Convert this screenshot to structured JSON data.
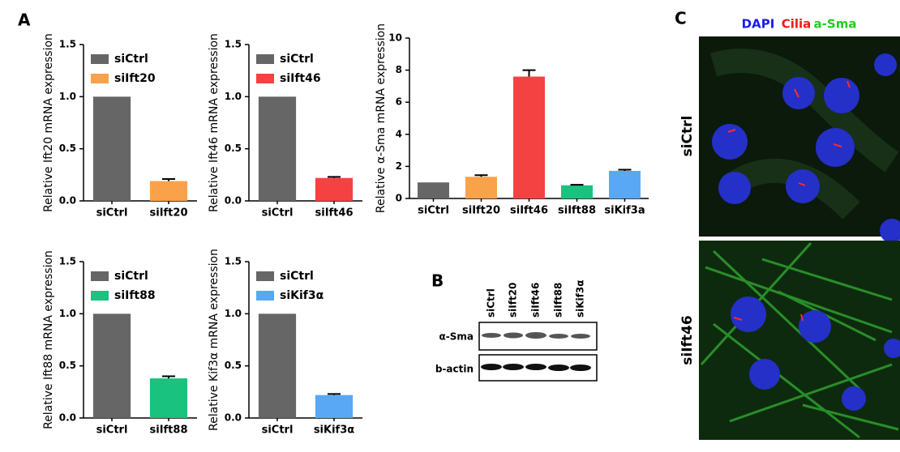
{
  "chart_data": [
    {
      "type": "bar",
      "y_label": "Relative Ift20 mRNA expression",
      "categories": [
        "siCtrl",
        "siIft20"
      ],
      "values": [
        1.0,
        0.19
      ],
      "errors": [
        null,
        0.02
      ],
      "colors": [
        "#666666",
        "#f9a24a"
      ],
      "ylim": [
        0,
        1.5
      ],
      "yticks": [
        {
          "value": 0,
          "label": "0.0"
        },
        0.5,
        {
          "value": 1,
          "label": "1.0"
        },
        1.5
      ],
      "legend": "upper left"
    },
    {
      "type": "bar",
      "y_label": "Relative Ift46 mRNA expression",
      "categories": [
        "siCtrl",
        "siIft46"
      ],
      "values": [
        1.0,
        0.22
      ],
      "errors": [
        null,
        0.01
      ],
      "colors": [
        "#666666",
        "#f44242"
      ],
      "ylim": [
        0,
        1.5
      ],
      "yticks": [
        {
          "value": 0,
          "label": "0.0"
        },
        0.5,
        {
          "value": 1,
          "label": "1.0"
        },
        1.5
      ],
      "legend": "upper left"
    },
    {
      "type": "bar",
      "y_label": "Relative α-Sma mRNA expression",
      "categories": [
        "siCtrl",
        "siIft20",
        "siIft46",
        "siIft88",
        "siKif3a"
      ],
      "values": [
        1.0,
        1.35,
        7.6,
        0.82,
        1.72
      ],
      "errors": [
        null,
        0.1,
        0.4,
        0.03,
        0.07
      ],
      "colors": [
        "#666666",
        "#f9a24a",
        "#f44242",
        "#19c27e",
        "#58a8f5"
      ],
      "ylim": [
        0,
        10
      ],
      "yticks": [
        0,
        2,
        4,
        6,
        8,
        10
      ]
    },
    {
      "type": "bar",
      "y_label": "Relative Ift88 mRNA expression",
      "categories": [
        "siCtrl",
        "siIft88"
      ],
      "values": [
        1.0,
        0.38
      ],
      "errors": [
        null,
        0.02
      ],
      "colors": [
        "#666666",
        "#19c27e"
      ],
      "ylim": [
        0,
        1.5
      ],
      "yticks": [
        {
          "value": 0,
          "label": "0.0"
        },
        0.5,
        {
          "value": 1,
          "label": "1.0"
        },
        1.5
      ],
      "legend": "upper left"
    },
    {
      "type": "bar",
      "y_label": "Relative Kif3α mRNA expression",
      "categories": [
        "siCtrl",
        "siKif3α"
      ],
      "values": [
        1.0,
        0.22
      ],
      "errors": [
        null,
        0.01
      ],
      "colors": [
        "#666666",
        "#58a8f5"
      ],
      "ylim": [
        0,
        1.5
      ],
      "yticks": [
        {
          "value": 0,
          "label": "0.0"
        },
        0.5,
        {
          "value": 1,
          "label": "1.0"
        },
        1.5
      ],
      "legend": "upper left"
    }
  ],
  "panel_labels": [
    "A",
    "B",
    "C"
  ],
  "blot": {
    "lanes": [
      "siCtrl",
      "siIft20",
      "siIft46",
      "siIft88",
      "siKif3α"
    ],
    "rows": [
      "α-Sma",
      "b-actin"
    ]
  },
  "images": {
    "channels": [
      {
        "name": "DAPI",
        "color": "#1a1aee"
      },
      {
        "name": "Cilia",
        "color": "#ee1a1a"
      },
      {
        "name": "a-Sma",
        "color": "#22cc22"
      }
    ],
    "conditions": [
      "siCtrl",
      "siIft46"
    ]
  }
}
